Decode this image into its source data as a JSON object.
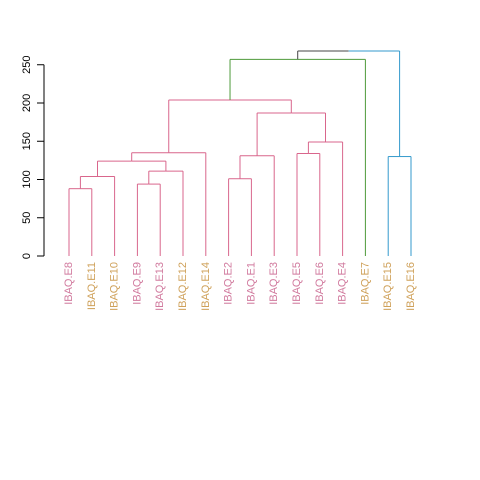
{
  "chart_data": {
    "type": "dendrogram",
    "title": "",
    "xlabel": "",
    "ylabel": "",
    "ylim": [
      0,
      275
    ],
    "y_ticks": [
      0,
      50,
      100,
      150,
      200,
      250
    ],
    "grid": false,
    "leaves": [
      {
        "label": "IBAQ.E8",
        "color": "#D17A9E"
      },
      {
        "label": "IBAQ.E11",
        "color": "#CFA15A"
      },
      {
        "label": "IBAQ.E10",
        "color": "#CFA15A"
      },
      {
        "label": "IBAQ.E9",
        "color": "#D17A9E"
      },
      {
        "label": "IBAQ.E13",
        "color": "#D17A9E"
      },
      {
        "label": "IBAQ.E12",
        "color": "#CFA15A"
      },
      {
        "label": "IBAQ.E14",
        "color": "#CFA15A"
      },
      {
        "label": "IBAQ.E2",
        "color": "#D17A9E"
      },
      {
        "label": "IBAQ.E1",
        "color": "#D17A9E"
      },
      {
        "label": "IBAQ.E3",
        "color": "#D17A9E"
      },
      {
        "label": "IBAQ.E5",
        "color": "#D17A9E"
      },
      {
        "label": "IBAQ.E6",
        "color": "#D17A9E"
      },
      {
        "label": "IBAQ.E4",
        "color": "#D17A9E"
      },
      {
        "label": "IBAQ.E7",
        "color": "#CFA15A"
      },
      {
        "label": "IBAQ.E15",
        "color": "#CFA15A"
      },
      {
        "label": "IBAQ.E16",
        "color": "#CFA15A"
      }
    ],
    "merges": [
      {
        "left": 0,
        "right": 1,
        "height": 88,
        "color": "#D9668C"
      },
      {
        "left": 16,
        "right": 2,
        "height": 104,
        "color": "#D9668C"
      },
      {
        "left": 3,
        "right": 4,
        "height": 94,
        "color": "#D9668C"
      },
      {
        "left": 18,
        "right": 5,
        "height": 111,
        "color": "#D9668C"
      },
      {
        "left": 17,
        "right": 19,
        "height": 124,
        "color": "#D9668C"
      },
      {
        "left": 20,
        "right": 6,
        "height": 135,
        "color": "#D9668C"
      },
      {
        "left": 7,
        "right": 8,
        "height": 101,
        "color": "#D9668C"
      },
      {
        "left": 22,
        "right": 9,
        "height": 131,
        "color": "#D9668C"
      },
      {
        "left": 10,
        "right": 11,
        "height": 134,
        "color": "#D9668C"
      },
      {
        "left": 24,
        "right": 12,
        "height": 149,
        "color": "#D9668C"
      },
      {
        "left": 23,
        "right": 25,
        "height": 187,
        "color": "#D9668C"
      },
      {
        "left": 21,
        "right": 26,
        "height": 204,
        "color": "#D9668C"
      },
      {
        "left": 27,
        "right": 13,
        "height": 257,
        "color": "#4E9A3A"
      },
      {
        "left": 14,
        "right": 15,
        "height": 130,
        "color": "#3399CC"
      },
      {
        "left": 28,
        "right": 29,
        "height": 268,
        "color": "#3399CC",
        "left_color": "#444444"
      }
    ]
  }
}
